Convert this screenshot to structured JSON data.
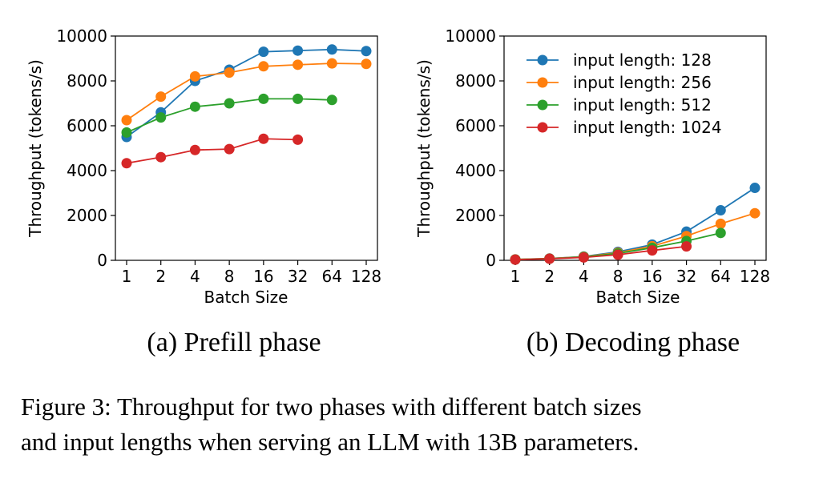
{
  "figure": {
    "caption_lines": [
      "Figure 3: Throughput for two phases with different batch sizes",
      "and input lengths when serving an LLM with 13B parameters."
    ]
  },
  "chart_data": [
    {
      "type": "line",
      "subcaption": "(a) Prefill phase",
      "xlabel": "Batch Size",
      "ylabel": "Throughput (tokens/s)",
      "categories": [
        "1",
        "2",
        "4",
        "8",
        "16",
        "32",
        "64",
        "128"
      ],
      "ylim": [
        0,
        10000
      ],
      "yticks": [
        0,
        2000,
        4000,
        6000,
        8000,
        10000
      ],
      "grid": false,
      "legend": null,
      "series": [
        {
          "name": "input length: 128",
          "color": "#1f77b4",
          "values": [
            5500,
            6600,
            8000,
            8500,
            9300,
            9350,
            9400,
            9330
          ]
        },
        {
          "name": "input length: 256",
          "color": "#ff7f0e",
          "values": [
            6250,
            7300,
            8200,
            8370,
            8650,
            8720,
            8780,
            8760
          ]
        },
        {
          "name": "input length: 512",
          "color": "#2ca02c",
          "values": [
            5700,
            6370,
            6850,
            7000,
            7200,
            7200,
            7150,
            null
          ]
        },
        {
          "name": "input length: 1024",
          "color": "#d62728",
          "values": [
            4330,
            4600,
            4920,
            4960,
            5420,
            5380,
            null,
            null
          ]
        }
      ]
    },
    {
      "type": "line",
      "subcaption": "(b) Decoding phase",
      "xlabel": "Batch Size",
      "ylabel": "Throughput (tokens/s)",
      "categories": [
        "1",
        "2",
        "4",
        "8",
        "16",
        "32",
        "64",
        "128"
      ],
      "ylim": [
        0,
        10000
      ],
      "yticks": [
        0,
        2000,
        4000,
        6000,
        8000,
        10000
      ],
      "grid": false,
      "legend": "top-left",
      "series": [
        {
          "name": "input length: 128",
          "color": "#1f77b4",
          "values": [
            40,
            80,
            170,
            380,
            700,
            1280,
            2230,
            3230
          ]
        },
        {
          "name": "input length: 256",
          "color": "#ff7f0e",
          "values": [
            38,
            78,
            160,
            340,
            630,
            1080,
            1630,
            2100
          ]
        },
        {
          "name": "input length: 512",
          "color": "#2ca02c",
          "values": [
            36,
            75,
            150,
            310,
            560,
            860,
            1220,
            null
          ]
        },
        {
          "name": "input length: 1024",
          "color": "#d62728",
          "values": [
            30,
            70,
            130,
            250,
            440,
            620,
            null,
            null
          ]
        }
      ]
    }
  ]
}
